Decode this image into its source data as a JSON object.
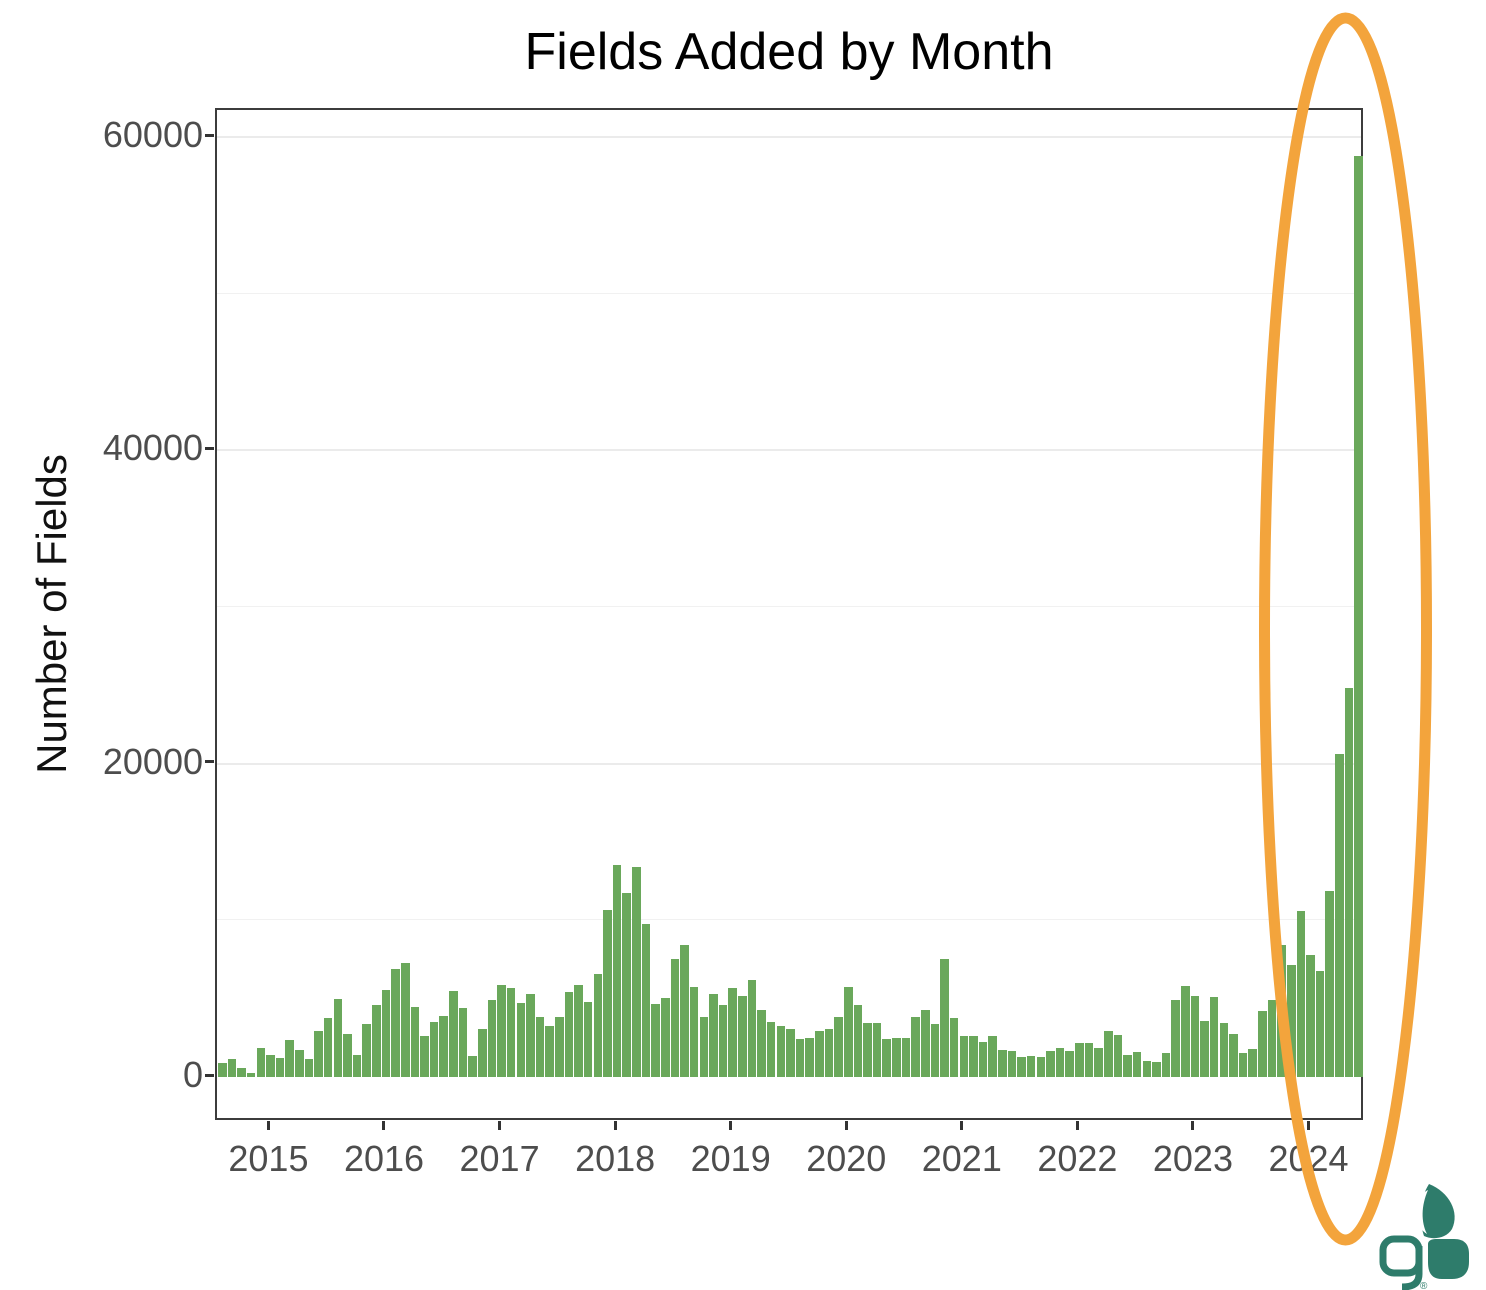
{
  "chart_data": {
    "type": "bar",
    "title": "Fields Added by Month",
    "ylabel": "Number of Fields",
    "xlabel": "",
    "ylim": [
      0,
      62000
    ],
    "y_ticks": [
      0,
      20000,
      40000,
      60000
    ],
    "y_minor_gridlines": [
      10000,
      30000,
      50000
    ],
    "x_tick_labels": [
      "2015",
      "2016",
      "2017",
      "2018",
      "2019",
      "2020",
      "2021",
      "2022",
      "2023",
      "2024"
    ],
    "start_month": "2014-08",
    "end_month": "2024-06",
    "grid": "horizontal-only",
    "legend": "none",
    "bar_color": "#6aa85b",
    "values": [
      900,
      1170,
      575,
      255,
      1850,
      1400,
      1210,
      2380,
      1720,
      1150,
      2935,
      3765,
      4975,
      2740,
      1420,
      3400,
      4615,
      5575,
      6870,
      7300,
      4450,
      2595,
      3510,
      3890,
      5470,
      4430,
      1340,
      3050,
      4900,
      5850,
      5680,
      4740,
      5320,
      3830,
      3260,
      3830,
      5430,
      5850,
      4790,
      6580,
      10650,
      13540,
      11760,
      13400,
      9780,
      4680,
      5060,
      7520,
      8440,
      5740,
      3830,
      5300,
      4590,
      5680,
      5170,
      6190,
      4270,
      3510,
      3250,
      3050,
      2400,
      2490,
      2935,
      3080,
      3830,
      5760,
      4620,
      3445,
      3445,
      2400,
      2490,
      2490,
      3810,
      4250,
      3380,
      7550,
      3765,
      2595,
      2595,
      2230,
      2595,
      1700,
      1640,
      1275,
      1310,
      1250,
      1650,
      1850,
      1680,
      2200,
      2200,
      1850,
      2915,
      2660,
      1420,
      1595,
      1020,
      955,
      1550,
      4890,
      5810,
      5170,
      3550,
      5100,
      3465,
      2765,
      1550,
      1805,
      4200,
      4890,
      8400,
      7170,
      10570,
      7805,
      6740,
      11850,
      20630,
      24820,
      58800
    ]
  },
  "annotation": {
    "shape": "ellipse",
    "stroke_color": "#f3a43c",
    "highlights": "2024 surge in fields added"
  },
  "logo": {
    "name": "leaf-g-brand-logo",
    "color": "#2e7c6b",
    "registered_mark": "®"
  }
}
